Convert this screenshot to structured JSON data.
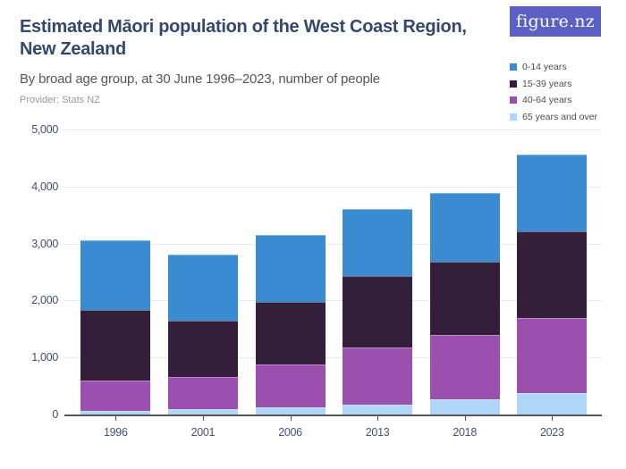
{
  "header": {
    "title_line1": "Estimated Māori population of the West Coast Region,",
    "title_line2": "New Zealand",
    "subtitle": "By broad age group, at 30 June 1996–2023, number of people",
    "provider": "Provider: Stats NZ"
  },
  "logo": {
    "text": "figure.nz"
  },
  "legend": {
    "items": [
      {
        "label": "0-14 years",
        "color": "#3A8BD2"
      },
      {
        "label": "15-39 years",
        "color": "#341F3A"
      },
      {
        "label": "40-64 years",
        "color": "#9B4FAE"
      },
      {
        "label": "65 years and over",
        "color": "#AFD6F8"
      }
    ]
  },
  "colors": {
    "accent_blue": "#3A8BD2",
    "dark_purple": "#341F3A",
    "purple": "#9B4FAE",
    "light_blue": "#AFD6F8",
    "logo_background": "#5A60C6",
    "title_text": "#33486E",
    "axis_text": "#3F4E74",
    "gridline": "#EAEAEC",
    "axis_line": "#53585E"
  },
  "chart_data": {
    "type": "bar",
    "stacked": true,
    "title": "Estimated Māori population of the West Coast Region, New Zealand",
    "subtitle": "By broad age group, at 30 June 1996–2023, number of people",
    "xlabel": "",
    "ylabel": "",
    "ylim": [
      0,
      5000
    ],
    "yticks": [
      0,
      1000,
      2000,
      3000,
      4000,
      5000
    ],
    "grid": true,
    "legend_position": "top-right",
    "categories": [
      "1996",
      "2001",
      "2006",
      "2013",
      "2018",
      "2023"
    ],
    "series": [
      {
        "name": "65 years and over",
        "color": "#AFD6F8",
        "values": [
          60,
          90,
          120,
          180,
          270,
          380
        ]
      },
      {
        "name": "40-64 years",
        "color": "#9B4FAE",
        "values": [
          530,
          570,
          760,
          1000,
          1130,
          1320
        ]
      },
      {
        "name": "15-39 years",
        "color": "#341F3A",
        "values": [
          1250,
          990,
          1090,
          1250,
          1280,
          1510
        ]
      },
      {
        "name": "0-14 years",
        "color": "#3A8BD2",
        "values": [
          1210,
          1150,
          1180,
          1170,
          1200,
          1360
        ]
      }
    ],
    "totals": [
      3050,
      2800,
      3150,
      3600,
      3880,
      4570
    ]
  }
}
